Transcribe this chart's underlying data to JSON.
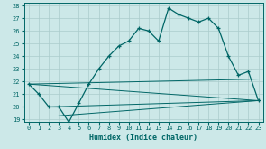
{
  "xlabel": "Humidex (Indice chaleur)",
  "bg_color": "#cce8e8",
  "grid_color": "#aacccc",
  "line_color": "#006666",
  "xlim": [
    -0.5,
    23.5
  ],
  "ylim": [
    18.8,
    28.2
  ],
  "xticks": [
    0,
    1,
    2,
    3,
    4,
    5,
    6,
    7,
    8,
    9,
    10,
    11,
    12,
    13,
    14,
    15,
    16,
    17,
    18,
    19,
    20,
    21,
    22,
    23
  ],
  "yticks": [
    19,
    20,
    21,
    22,
    23,
    24,
    25,
    26,
    27,
    28
  ],
  "main_x": [
    0,
    1,
    2,
    3,
    4,
    5,
    6,
    7,
    8,
    9,
    10,
    11,
    12,
    13,
    14,
    15,
    16,
    17,
    18,
    19,
    20,
    21,
    22,
    23
  ],
  "main_y": [
    21.8,
    21.0,
    20.0,
    20.0,
    18.8,
    20.3,
    21.8,
    23.0,
    24.0,
    24.8,
    25.2,
    26.2,
    26.0,
    25.2,
    27.8,
    27.3,
    27.0,
    26.7,
    27.0,
    26.2,
    24.0,
    22.5,
    22.8,
    20.5
  ],
  "line2_x": [
    0,
    23
  ],
  "line2_y": [
    21.8,
    22.2
  ],
  "line3_x": [
    0,
    23
  ],
  "line3_y": [
    21.8,
    20.5
  ],
  "line4_x": [
    2,
    23
  ],
  "line4_y": [
    20.0,
    20.5
  ],
  "line5_x": [
    3,
    23
  ],
  "line5_y": [
    19.3,
    20.5
  ]
}
